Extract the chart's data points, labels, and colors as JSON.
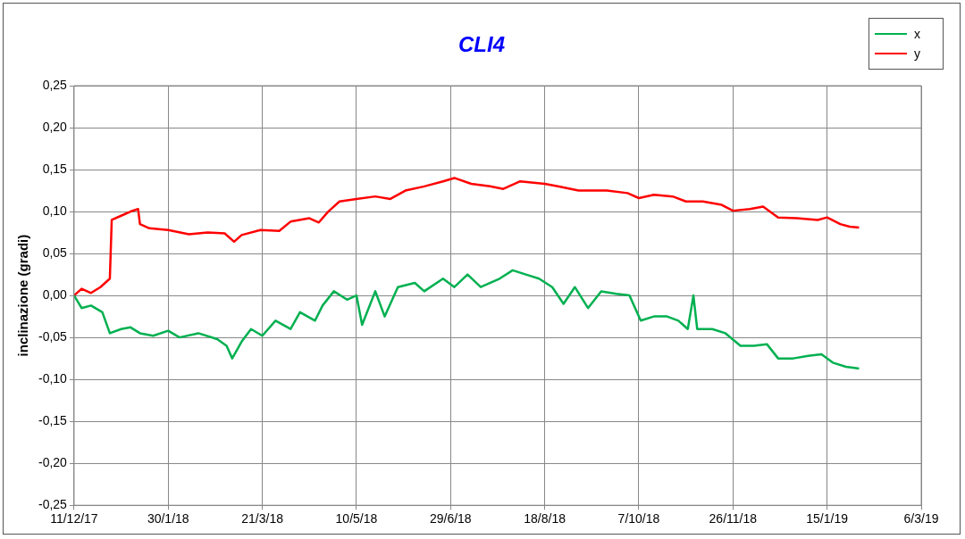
{
  "chart_data": {
    "type": "line",
    "title": "CLI4",
    "ylabel": "inclinazione (gradi)",
    "xlim": [
      "2017-12-11",
      "2019-03-06"
    ],
    "xticks": [
      {
        "value": "2017-12-11",
        "label": "11/12/17"
      },
      {
        "value": "2018-01-30",
        "label": "30/1/18"
      },
      {
        "value": "2018-03-21",
        "label": "21/3/18"
      },
      {
        "value": "2018-05-10",
        "label": "10/5/18"
      },
      {
        "value": "2018-06-29",
        "label": "29/6/18"
      },
      {
        "value": "2018-08-18",
        "label": "18/8/18"
      },
      {
        "value": "2018-10-07",
        "label": "7/10/18"
      },
      {
        "value": "2018-11-26",
        "label": "26/11/18"
      },
      {
        "value": "2019-01-15",
        "label": "15/1/19"
      },
      {
        "value": "2019-03-06",
        "label": "6/3/19"
      }
    ],
    "ylim": [
      -0.25,
      0.25
    ],
    "yticks": [
      {
        "value": -0.25,
        "label": "-0,25"
      },
      {
        "value": -0.2,
        "label": "-0,20"
      },
      {
        "value": -0.15,
        "label": "-0,15"
      },
      {
        "value": -0.1,
        "label": "-0,10"
      },
      {
        "value": -0.05,
        "label": "-0,05"
      },
      {
        "value": 0,
        "label": "0,00"
      },
      {
        "value": 0.05,
        "label": "0,05"
      },
      {
        "value": 0.1,
        "label": "0,10"
      },
      {
        "value": 0.15,
        "label": "0,15"
      },
      {
        "value": 0.2,
        "label": "0,20"
      },
      {
        "value": 0.25,
        "label": "0,25"
      }
    ],
    "grid": true,
    "legend": "top right",
    "marker": "none",
    "line_style": "solid",
    "series": [
      {
        "name": "x",
        "color": "#00b050",
        "x": [
          "2017-12-11",
          "2017-12-15",
          "2017-12-20",
          "2017-12-26",
          "2017-12-30",
          "2018-01-05",
          "2018-01-10",
          "2018-01-15",
          "2018-01-22",
          "2018-01-30",
          "2018-02-05",
          "2018-02-15",
          "2018-02-25",
          "2018-03-02",
          "2018-03-05",
          "2018-03-10",
          "2018-03-15",
          "2018-03-21",
          "2018-03-28",
          "2018-04-05",
          "2018-04-10",
          "2018-04-18",
          "2018-04-22",
          "2018-04-28",
          "2018-05-05",
          "2018-05-10",
          "2018-05-13",
          "2018-05-20",
          "2018-05-25",
          "2018-06-01",
          "2018-06-10",
          "2018-06-15",
          "2018-06-25",
          "2018-07-01",
          "2018-07-08",
          "2018-07-15",
          "2018-07-25",
          "2018-08-01",
          "2018-08-08",
          "2018-08-15",
          "2018-08-22",
          "2018-08-28",
          "2018-09-03",
          "2018-09-10",
          "2018-09-17",
          "2018-09-25",
          "2018-10-02",
          "2018-10-08",
          "2018-10-15",
          "2018-10-22",
          "2018-10-28",
          "2018-11-02",
          "2018-11-05",
          "2018-11-07",
          "2018-11-15",
          "2018-11-22",
          "2018-11-30",
          "2018-12-07",
          "2018-12-14",
          "2018-12-20",
          "2018-12-28",
          "2019-01-05",
          "2019-01-12",
          "2019-01-18",
          "2019-01-25",
          "2019-02-01"
        ],
        "values": [
          0,
          -0.015,
          -0.012,
          -0.02,
          -0.045,
          -0.04,
          -0.038,
          -0.045,
          -0.048,
          -0.042,
          -0.05,
          -0.045,
          -0.052,
          -0.06,
          -0.075,
          -0.055,
          -0.04,
          -0.048,
          -0.03,
          -0.04,
          -0.02,
          -0.03,
          -0.012,
          0.005,
          -0.005,
          0,
          -0.035,
          0.005,
          -0.025,
          0.01,
          0.015,
          0.005,
          0.02,
          0.01,
          0.025,
          0.01,
          0.02,
          0.03,
          0.025,
          0.02,
          0.01,
          -0.01,
          0.01,
          -0.015,
          0.005,
          0.002,
          0,
          -0.03,
          -0.025,
          -0.025,
          -0.03,
          -0.04,
          0,
          -0.04,
          -0.04,
          -0.045,
          -0.06,
          -0.06,
          -0.058,
          -0.075,
          -0.075,
          -0.072,
          -0.07,
          -0.08,
          -0.085,
          -0.087
        ]
      },
      {
        "name": "y",
        "color": "#ff0000",
        "x": [
          "2017-12-11",
          "2017-12-15",
          "2017-12-20",
          "2017-12-25",
          "2017-12-30",
          "2017-12-31",
          "2018-01-05",
          "2018-01-10",
          "2018-01-14",
          "2018-01-15",
          "2018-01-20",
          "2018-01-30",
          "2018-02-10",
          "2018-02-20",
          "2018-03-01",
          "2018-03-06",
          "2018-03-10",
          "2018-03-20",
          "2018-03-30",
          "2018-04-05",
          "2018-04-15",
          "2018-04-20",
          "2018-04-25",
          "2018-05-01",
          "2018-05-10",
          "2018-05-20",
          "2018-05-28",
          "2018-06-05",
          "2018-06-15",
          "2018-06-25",
          "2018-07-01",
          "2018-07-10",
          "2018-07-20",
          "2018-07-27",
          "2018-08-05",
          "2018-08-18",
          "2018-08-25",
          "2018-09-05",
          "2018-09-20",
          "2018-10-01",
          "2018-10-07",
          "2018-10-15",
          "2018-10-25",
          "2018-11-01",
          "2018-11-10",
          "2018-11-20",
          "2018-11-26",
          "2018-12-05",
          "2018-12-12",
          "2018-12-20",
          "2018-12-30",
          "2019-01-10",
          "2019-01-15",
          "2019-01-22",
          "2019-01-27",
          "2019-02-01"
        ],
        "values": [
          0,
          0.008,
          0.003,
          0.01,
          0.02,
          0.09,
          0.095,
          0.1,
          0.103,
          0.085,
          0.08,
          0.078,
          0.073,
          0.075,
          0.074,
          0.064,
          0.072,
          0.078,
          0.077,
          0.088,
          0.092,
          0.087,
          0.1,
          0.112,
          0.115,
          0.118,
          0.115,
          0.125,
          0.13,
          0.136,
          0.14,
          0.133,
          0.13,
          0.127,
          0.136,
          0.133,
          0.13,
          0.125,
          0.125,
          0.122,
          0.116,
          0.12,
          0.118,
          0.112,
          0.112,
          0.108,
          0.101,
          0.103,
          0.106,
          0.093,
          0.092,
          0.09,
          0.093,
          0.085,
          0.082,
          0.081
        ]
      }
    ]
  }
}
